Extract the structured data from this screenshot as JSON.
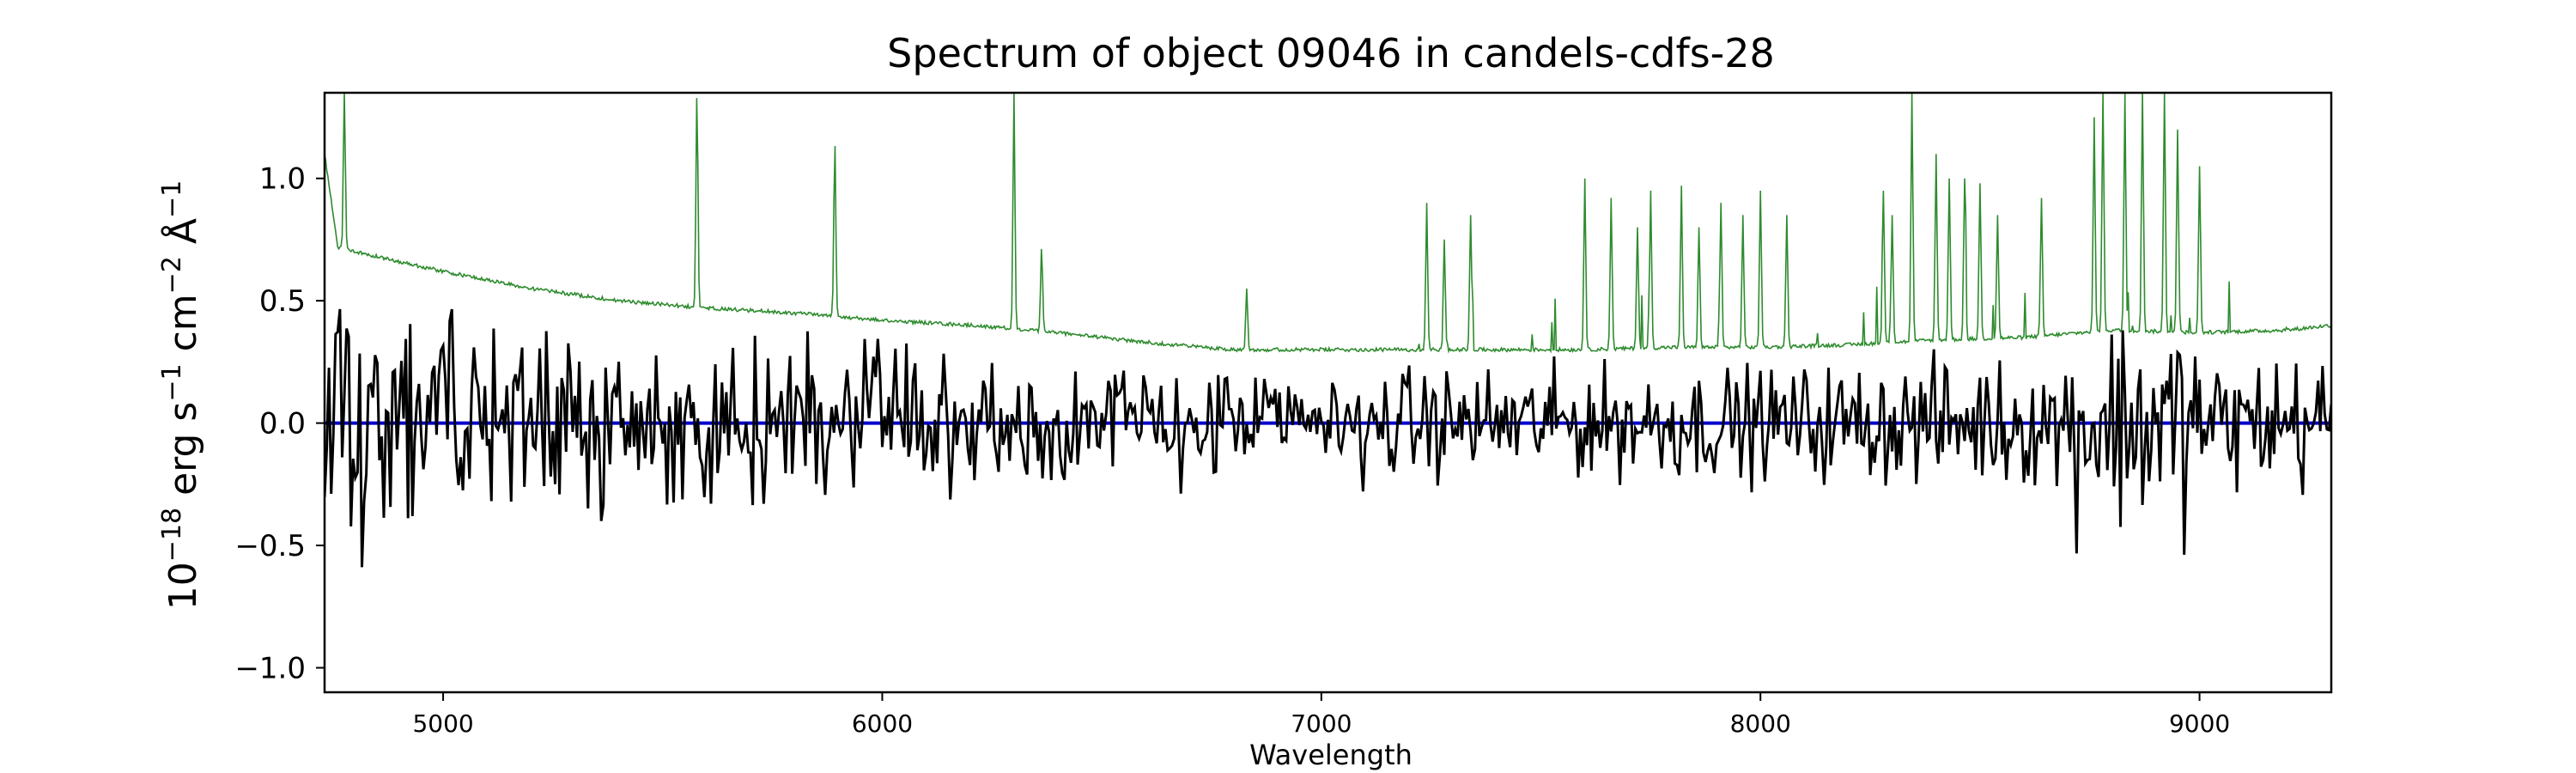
{
  "chart_data": {
    "type": "line",
    "title": "Spectrum of object 09046 in candels-cdfs-28",
    "xlabel": "Wavelength",
    "ylabel_base": "10",
    "ylabel_exp": "−18",
    "ylabel_rest": " erg s",
    "ylabel_exp2": "−1",
    "ylabel_rest2": " cm",
    "ylabel_exp3": "−2",
    "ylabel_rest3": " Å",
    "ylabel_exp4": "−1",
    "xlim": [
      4730,
      9300
    ],
    "ylim": [
      -1.1,
      1.35
    ],
    "x_ticks": [
      5000,
      6000,
      7000,
      8000,
      9000
    ],
    "x_tick_labels": [
      "5000",
      "6000",
      "7000",
      "8000",
      "9000"
    ],
    "y_ticks": [
      -1.0,
      -0.5,
      0.0,
      0.5,
      1.0
    ],
    "y_tick_labels": [
      "−1.0",
      "−0.5",
      "0.0",
      "0.5",
      "1.0"
    ],
    "grid": false,
    "colors": {
      "flux": "#000000",
      "error": "#2e8b2e",
      "zero": "#0000cc"
    },
    "zero_line": 0.0,
    "error_baseline": [
      [
        4730,
        1.1
      ],
      [
        4760,
        0.72
      ],
      [
        4800,
        0.7
      ],
      [
        5000,
        0.62
      ],
      [
        5200,
        0.55
      ],
      [
        5400,
        0.5
      ],
      [
        5600,
        0.47
      ],
      [
        5800,
        0.45
      ],
      [
        6000,
        0.42
      ],
      [
        6200,
        0.4
      ],
      [
        6400,
        0.37
      ],
      [
        6600,
        0.33
      ],
      [
        6800,
        0.3
      ],
      [
        7000,
        0.3
      ],
      [
        7200,
        0.3
      ],
      [
        7400,
        0.3
      ],
      [
        7600,
        0.3
      ],
      [
        7800,
        0.31
      ],
      [
        8000,
        0.31
      ],
      [
        8200,
        0.32
      ],
      [
        8400,
        0.34
      ],
      [
        8600,
        0.35
      ],
      [
        8800,
        0.38
      ],
      [
        9000,
        0.37
      ],
      [
        9200,
        0.38
      ],
      [
        9300,
        0.4
      ]
    ],
    "error_lines": [
      [
        4775,
        1.35
      ],
      [
        5578,
        1.35
      ],
      [
        5892,
        1.15
      ],
      [
        6300,
        1.35
      ],
      [
        6363,
        0.72
      ],
      [
        6830,
        0.55
      ],
      [
        7240,
        0.9
      ],
      [
        7280,
        0.75
      ],
      [
        7340,
        0.85
      ],
      [
        7600,
        1.0
      ],
      [
        7660,
        0.92
      ],
      [
        7720,
        0.8
      ],
      [
        7750,
        0.95
      ],
      [
        7820,
        0.97
      ],
      [
        7860,
        0.8
      ],
      [
        7910,
        0.9
      ],
      [
        7960,
        0.85
      ],
      [
        8000,
        0.95
      ],
      [
        8060,
        0.85
      ],
      [
        8280,
        0.95
      ],
      [
        8300,
        0.85
      ],
      [
        8345,
        1.35
      ],
      [
        8400,
        1.1
      ],
      [
        8430,
        1.0
      ],
      [
        8465,
        1.0
      ],
      [
        8500,
        0.98
      ],
      [
        8540,
        0.85
      ],
      [
        8640,
        0.92
      ],
      [
        8760,
        1.25
      ],
      [
        8780,
        1.35
      ],
      [
        8830,
        1.35
      ],
      [
        8870,
        1.35
      ],
      [
        8920,
        1.35
      ],
      [
        8950,
        1.2
      ],
      [
        9000,
        1.05
      ]
    ]
  }
}
